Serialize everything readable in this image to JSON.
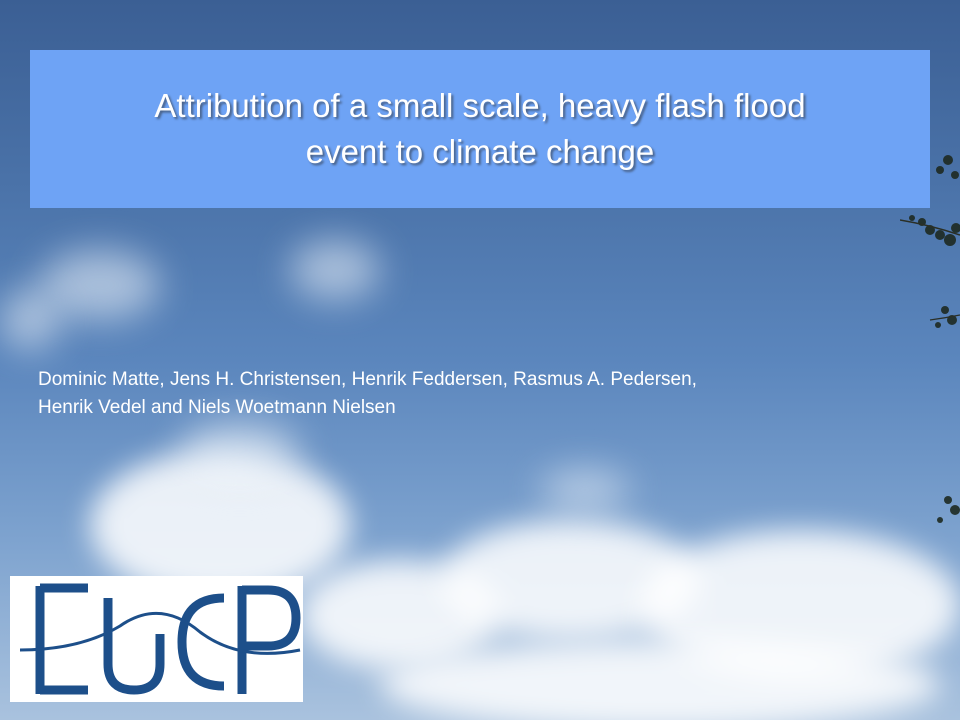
{
  "slide": {
    "title_line1": "Attribution of a small scale, heavy flash flood",
    "title_line2": "event to climate change",
    "authors_line1": "Dominic Matte, Jens H. Christensen, Henrik Feddersen, Rasmus A. Pedersen,",
    "authors_line2": "Henrik Vedel and Niels Woetmann Nielsen",
    "logo_text": "EUCP"
  },
  "colors": {
    "title_box": "#6ea3f5",
    "logo_blue": "#1d4f8a"
  }
}
